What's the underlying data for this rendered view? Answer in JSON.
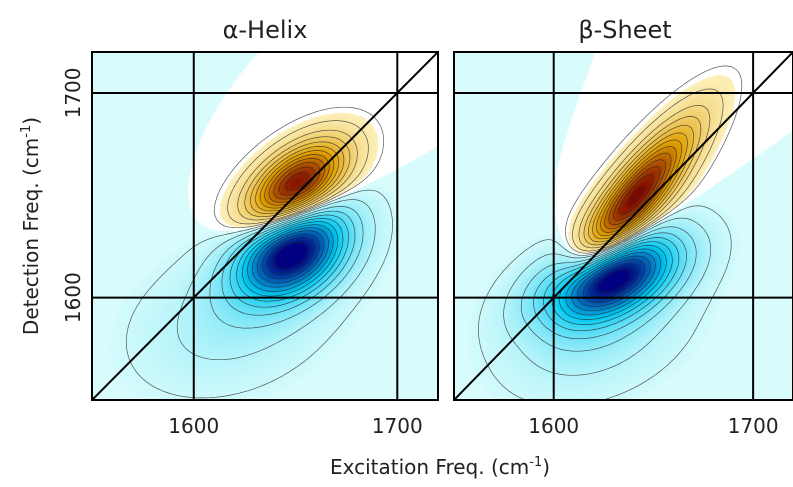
{
  "chart_data": [
    {
      "type": "heatmap",
      "title": "α-Helix",
      "xlim": [
        1550,
        1720
      ],
      "ylim": [
        1550,
        1720
      ],
      "xticks": [
        1600,
        1700
      ],
      "yticks": [
        1600,
        1700
      ],
      "gridlines_x": [
        1600,
        1700
      ],
      "gridlines_y": [
        1600,
        1700
      ],
      "diagonal": true,
      "positive_peak": {
        "x": 1650,
        "y": 1655,
        "sx": 16,
        "sy": 14,
        "rho": 0.55,
        "amp": 1.0
      },
      "negative_peak": {
        "x": 1648,
        "y": 1622,
        "sx": 18,
        "sy": 15,
        "rho": 0.35,
        "amp": -1.05
      },
      "tail": {
        "x": 1620,
        "y": 1590,
        "sx": 30,
        "sy": 22,
        "rho": 0.3,
        "amp": -0.12
      }
    },
    {
      "type": "heatmap",
      "title": "β-Sheet",
      "xlim": [
        1550,
        1720
      ],
      "ylim": [
        1550,
        1720
      ],
      "xticks": [
        1600,
        1700
      ],
      "yticks": [],
      "gridlines_x": [
        1600,
        1700
      ],
      "gridlines_y": [
        1600,
        1700
      ],
      "diagonal": true,
      "positive_peak": {
        "x": 1640,
        "y": 1648,
        "sx": 20,
        "sy": 24,
        "rho": 0.85,
        "amp": 1.0
      },
      "negative_peak": {
        "x": 1628,
        "y": 1610,
        "sx": 22,
        "sy": 14,
        "rho": 0.45,
        "amp": -1.05
      },
      "tail": {
        "x": 1620,
        "y": 1585,
        "sx": 28,
        "sy": 20,
        "rho": 0.3,
        "amp": -0.15
      }
    }
  ],
  "labels": {
    "xlabel": "Excitation Freq. (cm",
    "xlabel_sup": "-1",
    "xlabel_end": ")",
    "ylabel": "Detection Freq. (cm",
    "ylabel_sup": "-1",
    "ylabel_end": ")"
  },
  "colors": {
    "positive_high": "#7a0000",
    "positive_mid": "#e0a000",
    "positive_low": "#fff6c8",
    "negative_high": "#000080",
    "negative_mid": "#00c8f0",
    "negative_low": "#d8fcfc",
    "contour": "#222222"
  }
}
